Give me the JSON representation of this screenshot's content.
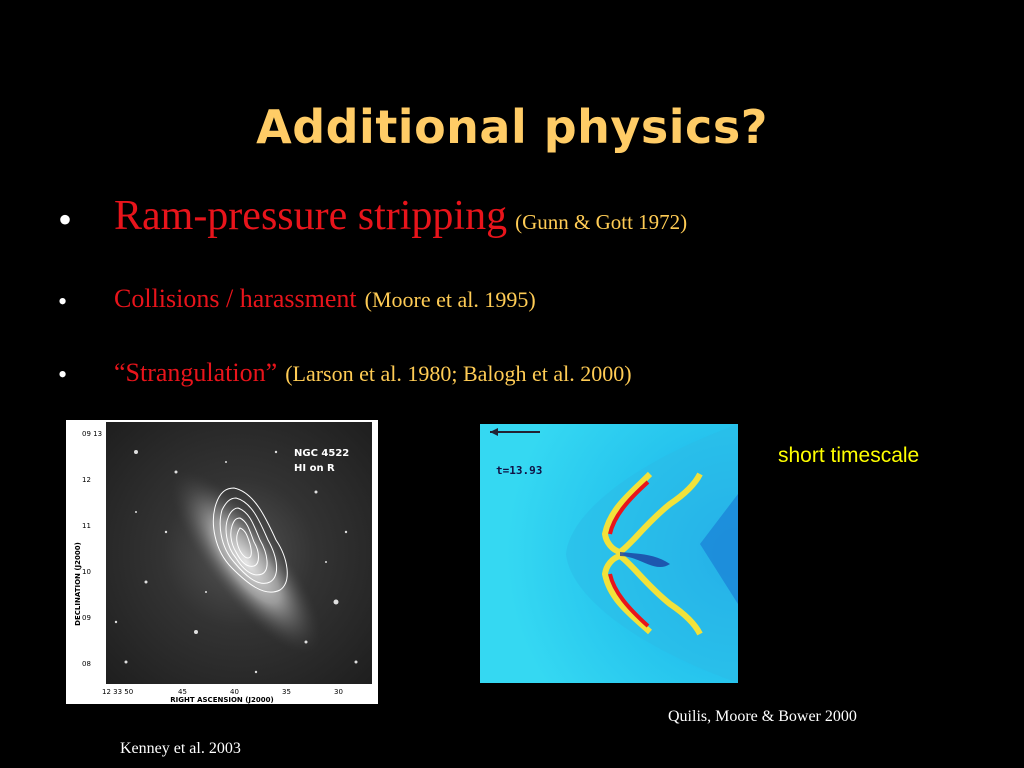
{
  "slide": {
    "title": "Additional physics?",
    "bullet_symbol": "•",
    "bullets": [
      {
        "text": "Ram-pressure stripping",
        "ref": "(Gunn & Gott 1972)"
      },
      {
        "text": "Collisions / harassment",
        "ref": "(Moore et al. 1995)"
      },
      {
        "text": "“Strangulation”",
        "ref": "(Larson et al. 1980; Balogh et al. 2000)"
      }
    ],
    "note": "short timescale"
  },
  "galaxy_figure": {
    "label_line1": "NGC 4522",
    "label_line2": "HI on R",
    "y_ticks": [
      "09 13",
      "12",
      "11",
      "10",
      "09",
      "08"
    ],
    "x_ticks": [
      "12 33 50",
      "45",
      "40",
      "35",
      "30"
    ],
    "y_axis_title": "DECLINATION (J2000)",
    "x_axis_title": "RIGHT ASCENSION (J2000)",
    "caption": "Kenney et al. 2003"
  },
  "simulation_figure": {
    "time_label": "t=13.93",
    "caption": "Quilis, Moore & Bower 2000"
  }
}
